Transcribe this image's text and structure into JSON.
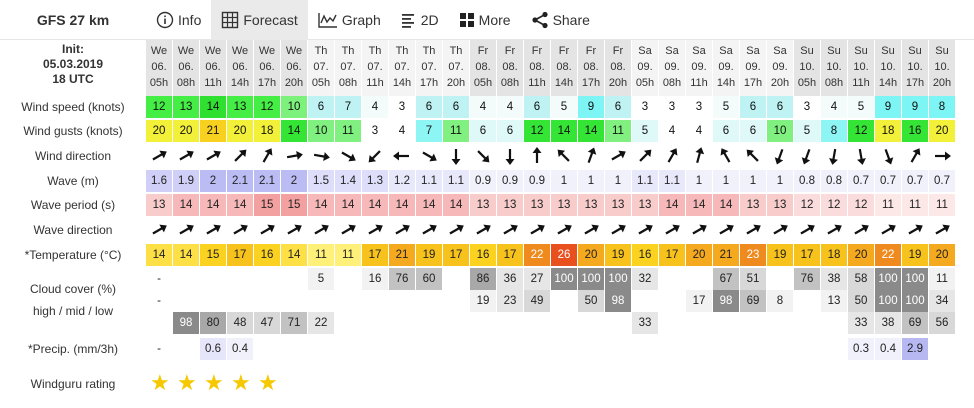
{
  "model_label": "GFS 27 km",
  "tabs": [
    {
      "label": "Info",
      "icon": "info-icon"
    },
    {
      "label": "Forecast",
      "icon": "table-icon"
    },
    {
      "label": "Graph",
      "icon": "graph-icon"
    },
    {
      "label": "2D",
      "icon": "2d-icon"
    },
    {
      "label": "More",
      "icon": "grid-icon"
    },
    {
      "label": "Share",
      "icon": "share-icon"
    }
  ],
  "init": {
    "line1": "Init:",
    "line2": "05.03.2019",
    "line3": "18 UTC"
  },
  "row_labels": {
    "wind_speed": "Wind speed (knots)",
    "wind_gusts": "Wind gusts (knots)",
    "wind_direction": "Wind direction",
    "wave": "Wave (m)",
    "wave_period": "Wave period (s)",
    "wave_direction": "Wave direction",
    "temperature": "*Temperature (°C)",
    "cloud1": "Cloud cover (%)",
    "cloud2": "high / mid / low",
    "precip": "*Precip. (mm/3h)",
    "rating": "Windguru rating"
  },
  "columns": {
    "days": [
      "We",
      "We",
      "We",
      "We",
      "We",
      "We",
      "Th",
      "Th",
      "Th",
      "Th",
      "Th",
      "Th",
      "Fr",
      "Fr",
      "Fr",
      "Fr",
      "Fr",
      "Fr",
      "Sa",
      "Sa",
      "Sa",
      "Sa",
      "Sa",
      "Sa",
      "Su",
      "Su",
      "Su",
      "Su",
      "Su",
      "Su"
    ],
    "dates": [
      "06.",
      "06.",
      "06.",
      "06.",
      "06.",
      "06.",
      "07.",
      "07.",
      "07.",
      "07.",
      "07.",
      "07.",
      "08.",
      "08.",
      "08.",
      "08.",
      "08.",
      "08.",
      "09.",
      "09.",
      "09.",
      "09.",
      "09.",
      "09.",
      "10.",
      "10.",
      "10.",
      "10.",
      "10.",
      "10."
    ],
    "hours": [
      "05h",
      "08h",
      "11h",
      "14h",
      "17h",
      "20h",
      "05h",
      "08h",
      "11h",
      "14h",
      "17h",
      "20h",
      "05h",
      "08h",
      "11h",
      "14h",
      "17h",
      "20h",
      "05h",
      "08h",
      "11h",
      "14h",
      "17h",
      "20h",
      "05h",
      "08h",
      "11h",
      "14h",
      "17h",
      "20h"
    ]
  },
  "wind_speed": [
    "12",
    "13",
    "14",
    "13",
    "12",
    "10",
    "6",
    "7",
    "4",
    "3",
    "6",
    "6",
    "4",
    "4",
    "6",
    "5",
    "9",
    "6",
    "3",
    "3",
    "3",
    "5",
    "6",
    "6",
    "3",
    "4",
    "5",
    "9",
    "9",
    "8"
  ],
  "wind_gusts": [
    "20",
    "20",
    "21",
    "20",
    "18",
    "14",
    "10",
    "11",
    "3",
    "4",
    "7",
    "11",
    "6",
    "6",
    "12",
    "14",
    "14",
    "11",
    "5",
    "4",
    "4",
    "6",
    "6",
    "10",
    "5",
    "8",
    "12",
    "18",
    "16",
    "20"
  ],
  "wind_direction_deg": [
    60,
    60,
    60,
    45,
    30,
    80,
    100,
    120,
    225,
    270,
    120,
    180,
    135,
    180,
    0,
    315,
    20,
    60,
    45,
    30,
    15,
    330,
    315,
    200,
    200,
    190,
    170,
    160,
    30,
    90
  ],
  "wave": [
    "1.6",
    "1.9",
    "2",
    "2.1",
    "2.1",
    "2",
    "1.5",
    "1.4",
    "1.3",
    "1.2",
    "1.1",
    "1.1",
    "0.9",
    "0.9",
    "0.9",
    "1",
    "1",
    "1",
    "1.1",
    "1.1",
    "1",
    "1",
    "1",
    "1",
    "0.8",
    "0.8",
    "0.7",
    "0.7",
    "0.7",
    "0.7"
  ],
  "wave_period": [
    "13",
    "14",
    "14",
    "14",
    "15",
    "15",
    "14",
    "14",
    "14",
    "14",
    "14",
    "14",
    "13",
    "13",
    "13",
    "13",
    "13",
    "13",
    "13",
    "14",
    "14",
    "14",
    "13",
    "13",
    "12",
    "12",
    "12",
    "11",
    "11",
    "11"
  ],
  "wave_direction_deg": [
    60,
    60,
    60,
    60,
    60,
    60,
    60,
    60,
    60,
    60,
    60,
    60,
    60,
    60,
    60,
    60,
    60,
    60,
    60,
    60,
    60,
    60,
    60,
    60,
    60,
    60,
    60,
    60,
    60,
    60
  ],
  "temperature": [
    "14",
    "14",
    "15",
    "17",
    "16",
    "14",
    "11",
    "11",
    "17",
    "21",
    "19",
    "17",
    "16",
    "17",
    "22",
    "26",
    "20",
    "19",
    "16",
    "17",
    "20",
    "21",
    "23",
    "19",
    "17",
    "18",
    "20",
    "22",
    "19",
    "20"
  ],
  "cloud_high": [
    "-",
    "",
    "",
    "",
    "",
    "",
    "5",
    "",
    "16",
    "76",
    "60",
    "",
    "86",
    "36",
    "27",
    "100",
    "100",
    "100",
    "32",
    "",
    "",
    "67",
    "51",
    "",
    "76",
    "38",
    "58",
    "100",
    "100",
    "11"
  ],
  "cloud_mid": [
    "-",
    "",
    "",
    "",
    "",
    "",
    "",
    "",
    "",
    "",
    "",
    "",
    "19",
    "23",
    "49",
    "",
    "50",
    "98",
    "",
    "",
    "17",
    "98",
    "69",
    "8",
    "",
    "13",
    "50",
    "100",
    "100",
    "34"
  ],
  "cloud_low": [
    "",
    "98",
    "80",
    "48",
    "47",
    "71",
    "22",
    "",
    "",
    "",
    "",
    "",
    "",
    "",
    "",
    "",
    "",
    "",
    "33",
    "",
    "",
    "",
    "",
    "",
    "",
    "",
    "33",
    "38",
    "69",
    "56"
  ],
  "precip": [
    "-",
    "",
    "0.6",
    "0.4",
    "",
    "",
    "",
    "",
    "",
    "",
    "",
    "",
    "",
    "",
    "",
    "",
    "",
    "",
    "",
    "",
    "",
    "",
    "",
    "",
    "",
    "",
    "0.3",
    "0.4",
    "2.9",
    ""
  ],
  "rating_stars": 5,
  "colors": {
    "tab_active_bg": "#eaeaea",
    "star": "#f5c800"
  }
}
